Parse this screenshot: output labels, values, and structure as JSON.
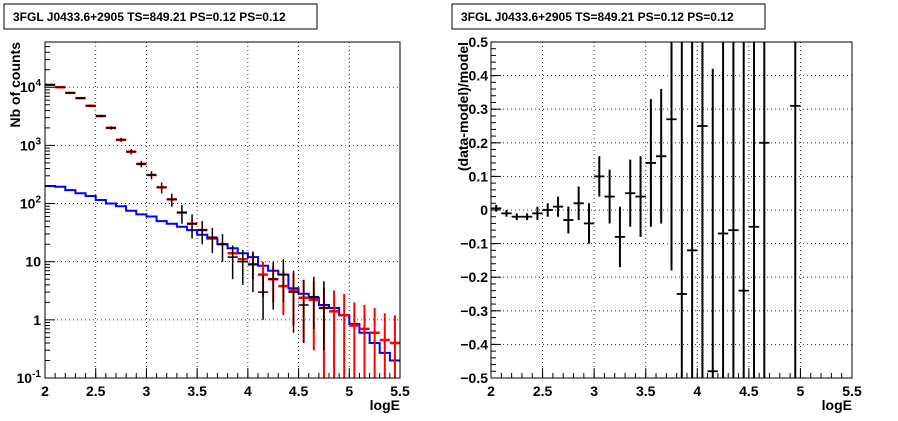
{
  "chart_data": [
    {
      "type": "line",
      "title": "3FGL J0433.6+2905 TS=849.21 PS=0.12 PS=0.12",
      "xlabel": "logE",
      "ylabel": "Nb of counts",
      "xlim": [
        2,
        5.5
      ],
      "ylim": [
        0.1,
        60000
      ],
      "yscale": "log",
      "grid": true,
      "x_ticks": [
        "2",
        "2.5",
        "3",
        "3.5",
        "4",
        "4.5",
        "5",
        "5.5"
      ],
      "y_ticks": [
        "10^-1",
        "1",
        "10",
        "10^2",
        "10^3",
        "10^4"
      ],
      "bin_edges": [
        2.0,
        2.1,
        2.2,
        2.3,
        2.4,
        2.5,
        2.6,
        2.7,
        2.8,
        2.9,
        3.0,
        3.1,
        3.2,
        3.3,
        3.4,
        3.5,
        3.6,
        3.7,
        3.8,
        3.9,
        4.0,
        4.1,
        4.2,
        4.3,
        4.4,
        4.5,
        4.6,
        4.7,
        4.8,
        4.9,
        5.0,
        5.1,
        5.2,
        5.3,
        5.4,
        5.5
      ],
      "series": [
        {
          "role": "data",
          "color": "#000000",
          "x": [
            2.05,
            2.15,
            2.25,
            2.35,
            2.45,
            2.55,
            2.65,
            2.75,
            2.85,
            2.95,
            3.05,
            3.15,
            3.25,
            3.35,
            3.45,
            3.55,
            3.65,
            3.75,
            3.85,
            3.95,
            4.05,
            4.15,
            4.25,
            4.35,
            4.45,
            4.55,
            4.65,
            4.75
          ],
          "y": [
            11000,
            10000,
            8000,
            6500,
            4800,
            3200,
            2000,
            1250,
            780,
            480,
            310,
            190,
            118,
            70,
            45,
            35,
            26,
            20,
            12,
            10,
            9,
            3,
            5,
            6,
            3,
            1.8,
            2.5,
            1.6
          ],
          "yerr_low": [
            300,
            280,
            250,
            220,
            200,
            170,
            130,
            100,
            80,
            60,
            50,
            40,
            30,
            25,
            20,
            15,
            12,
            10,
            7,
            6,
            6,
            2,
            3.5,
            4,
            2.4,
            1.4,
            1.8,
            1.3
          ],
          "yerr_high": [
            300,
            280,
            250,
            220,
            200,
            170,
            130,
            100,
            80,
            60,
            50,
            40,
            30,
            25,
            20,
            15,
            12,
            10,
            7,
            6,
            6,
            3,
            5,
            5,
            4,
            3,
            3,
            3
          ]
        },
        {
          "role": "model",
          "color": "#ff0000",
          "x": [
            2.05,
            2.15,
            2.25,
            2.35,
            2.45,
            2.55,
            2.65,
            2.75,
            2.85,
            2.95,
            3.05,
            3.15,
            3.25,
            3.35,
            3.45,
            3.55,
            3.65,
            3.75,
            3.85,
            3.95,
            4.05,
            4.15,
            4.25,
            4.35,
            4.45,
            4.55,
            4.65,
            4.75,
            4.85,
            4.95,
            5.05,
            5.15,
            5.25,
            5.35,
            5.45
          ],
          "y": [
            11000,
            10000,
            8000,
            6500,
            4800,
            3200,
            2000,
            1250,
            780,
            480,
            310,
            190,
            118,
            70,
            45,
            35,
            26,
            20,
            14,
            11,
            9,
            6,
            5,
            3.8,
            3.2,
            2.4,
            2.2,
            1.6,
            1.4,
            1.2,
            0.8,
            0.7,
            0.6,
            0.45,
            0.4
          ],
          "yerr_low": [
            0,
            0,
            0,
            0,
            0,
            0,
            0,
            0,
            0,
            0,
            0,
            0,
            0,
            0,
            0,
            0,
            0,
            0,
            0,
            0,
            4,
            3.5,
            3,
            2.6,
            2.4,
            2,
            1.9,
            1.5,
            1.3,
            1.15,
            0.78,
            0.69,
            0.59,
            0.44,
            0.39
          ],
          "yerr_high": [
            0,
            0,
            0,
            0,
            0,
            0,
            0,
            0,
            0,
            0,
            0,
            0,
            0,
            0,
            0,
            0,
            0,
            0,
            0,
            0,
            5,
            4,
            3.5,
            3.2,
            3,
            2.5,
            2.4,
            2,
            1.8,
            1.6,
            1.2,
            1.1,
            1,
            0.85,
            0.8
          ]
        },
        {
          "role": "background",
          "color": "#0000ff",
          "x": [
            2.05,
            2.15,
            2.25,
            2.35,
            2.45,
            2.55,
            2.65,
            2.75,
            2.85,
            2.95,
            3.05,
            3.15,
            3.25,
            3.35,
            3.45,
            3.55,
            3.65,
            3.75,
            3.85,
            3.95,
            4.05,
            4.15,
            4.25,
            4.35,
            4.45,
            4.55,
            4.65,
            4.75,
            4.85,
            4.95,
            5.05,
            5.15,
            5.25,
            5.35,
            5.45
          ],
          "y": [
            200,
            195,
            170,
            150,
            135,
            115,
            100,
            90,
            75,
            65,
            60,
            50,
            45,
            40,
            35,
            29,
            25,
            20,
            17,
            14,
            12,
            8.5,
            7,
            6,
            3.5,
            2.8,
            2.4,
            1.8,
            1.6,
            1.2,
            0.85,
            0.6,
            0.4,
            0.27,
            0.2
          ]
        }
      ]
    },
    {
      "type": "scatter",
      "title": "3FGL J0433.6+2905 TS=849.21 PS=0.12 PS=0.12",
      "xlabel": "logE",
      "ylabel": "(data-model)/model",
      "xlim": [
        2,
        5.5
      ],
      "ylim": [
        -0.5,
        0.5
      ],
      "grid": true,
      "x_ticks": [
        "2",
        "2.5",
        "3",
        "3.5",
        "4",
        "4.5",
        "5",
        "5.5"
      ],
      "y_ticks": [
        "−0.5",
        "−0.4",
        "−0.3",
        "−0.2",
        "−0.1",
        "0",
        "0.1",
        "0.2",
        "0.3",
        "0.4",
        "0.5"
      ],
      "series": [
        {
          "role": "residuals",
          "color": "#000000",
          "x": [
            2.05,
            2.15,
            2.25,
            2.35,
            2.45,
            2.55,
            2.65,
            2.75,
            2.85,
            2.95,
            3.05,
            3.15,
            3.25,
            3.35,
            3.45,
            3.55,
            3.65,
            3.75,
            3.85,
            3.95,
            4.05,
            4.15,
            4.25,
            4.35,
            4.45,
            4.55,
            4.65,
            4.95
          ],
          "y": [
            0.005,
            -0.01,
            -0.02,
            -0.02,
            -0.01,
            0.0,
            0.01,
            -0.03,
            0.02,
            -0.04,
            0.1,
            0.04,
            -0.08,
            0.05,
            0.04,
            0.14,
            0.16,
            0.27,
            -0.25,
            -0.12,
            0.25,
            -0.48,
            -0.07,
            -0.06,
            -0.24,
            -0.05,
            0.2,
            0.31
          ],
          "yerr": [
            0.01,
            0.01,
            0.01,
            0.01,
            0.02,
            0.02,
            0.03,
            0.04,
            0.05,
            0.06,
            0.06,
            0.08,
            0.09,
            0.1,
            0.12,
            0.19,
            0.2,
            0.45,
            0.8,
            0.8,
            0.9,
            0.9,
            0.9,
            0.9,
            0.9,
            0.9,
            0.9,
            0.9
          ]
        }
      ]
    }
  ]
}
